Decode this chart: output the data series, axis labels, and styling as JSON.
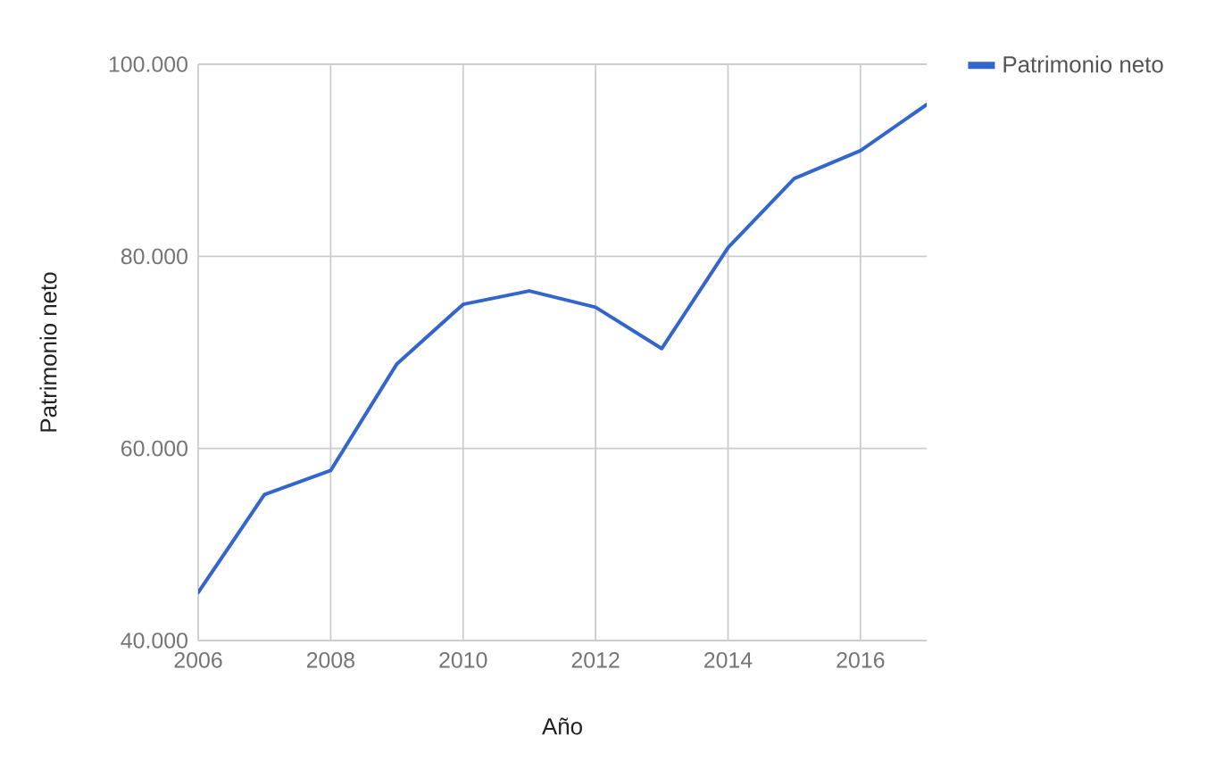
{
  "chart_data": {
    "type": "line",
    "xlabel": "Año",
    "ylabel": "Patrimonio neto",
    "x": [
      2006,
      2007,
      2008,
      2009,
      2010,
      2011,
      2012,
      2013,
      2014,
      2015,
      2016,
      2017
    ],
    "series": [
      {
        "name": "Patrimonio neto",
        "color": "#3366cc",
        "values": [
          45000,
          55200,
          57700,
          68800,
          75000,
          76400,
          74700,
          70400,
          80900,
          88100,
          91000,
          95800
        ]
      }
    ],
    "xlim": [
      2006,
      2017
    ],
    "ylim": [
      40000,
      100000
    ],
    "xticks": [
      2006,
      2008,
      2010,
      2012,
      2014,
      2016
    ],
    "yticks": [
      {
        "value": 40000,
        "label": "40.000"
      },
      {
        "value": 60000,
        "label": "60.000"
      },
      {
        "value": 80000,
        "label": "80.000"
      },
      {
        "value": 100000,
        "label": "100.000"
      }
    ],
    "grid": true,
    "legend": "top right",
    "marker": "none",
    "line_style": "solid"
  }
}
